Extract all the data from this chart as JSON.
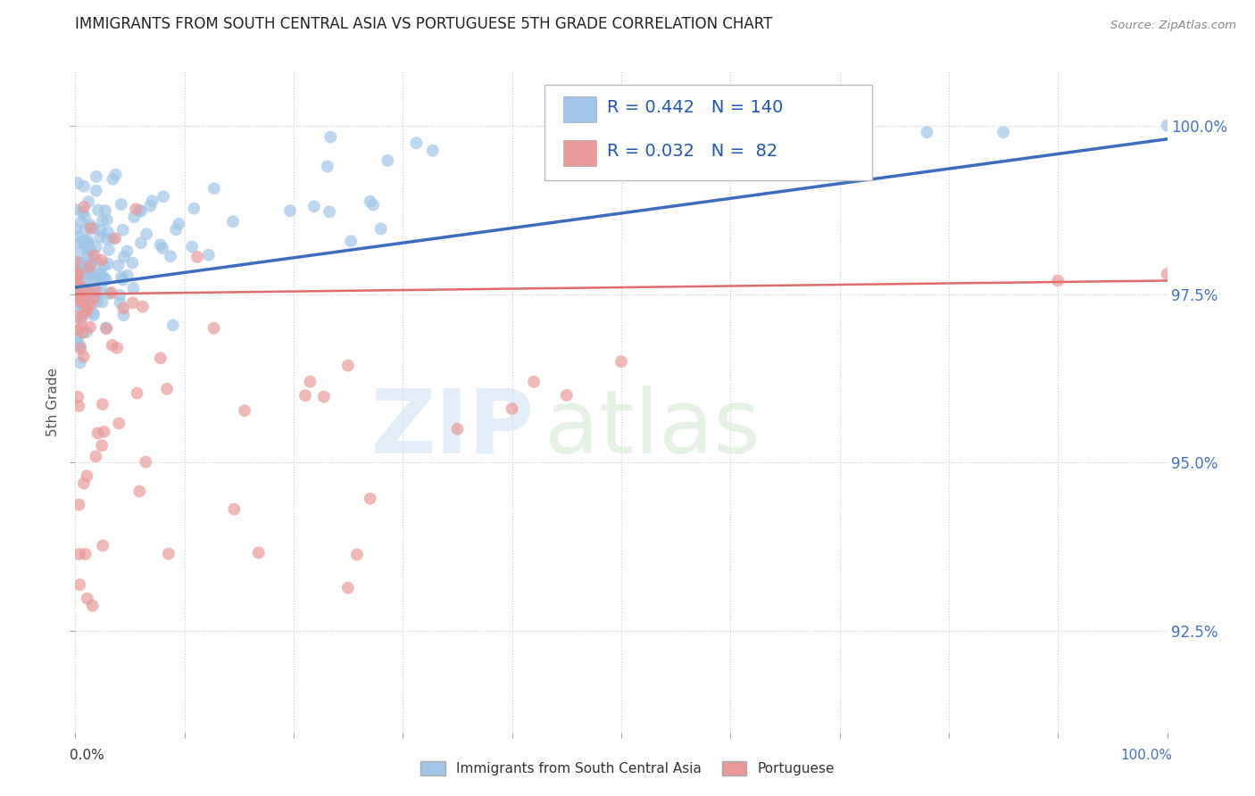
{
  "title": "IMMIGRANTS FROM SOUTH CENTRAL ASIA VS PORTUGUESE 5TH GRADE CORRELATION CHART",
  "source": "Source: ZipAtlas.com",
  "ylabel": "5th Grade",
  "ytick_labels": [
    "92.5%",
    "95.0%",
    "97.5%",
    "100.0%"
  ],
  "ytick_values": [
    0.925,
    0.95,
    0.975,
    1.0
  ],
  "blue_R": 0.442,
  "blue_N": 140,
  "pink_R": 0.032,
  "pink_N": 82,
  "blue_color": "#9fc5e8",
  "pink_color": "#ea9999",
  "blue_line_color": "#3a6cbf",
  "pink_line_color": "#e06c6c",
  "legend_label_blue": "Immigrants from South Central Asia",
  "legend_label_pink": "Portuguese",
  "xmin": 0.0,
  "xmax": 1.0,
  "ymin": 0.91,
  "ymax": 1.008
}
